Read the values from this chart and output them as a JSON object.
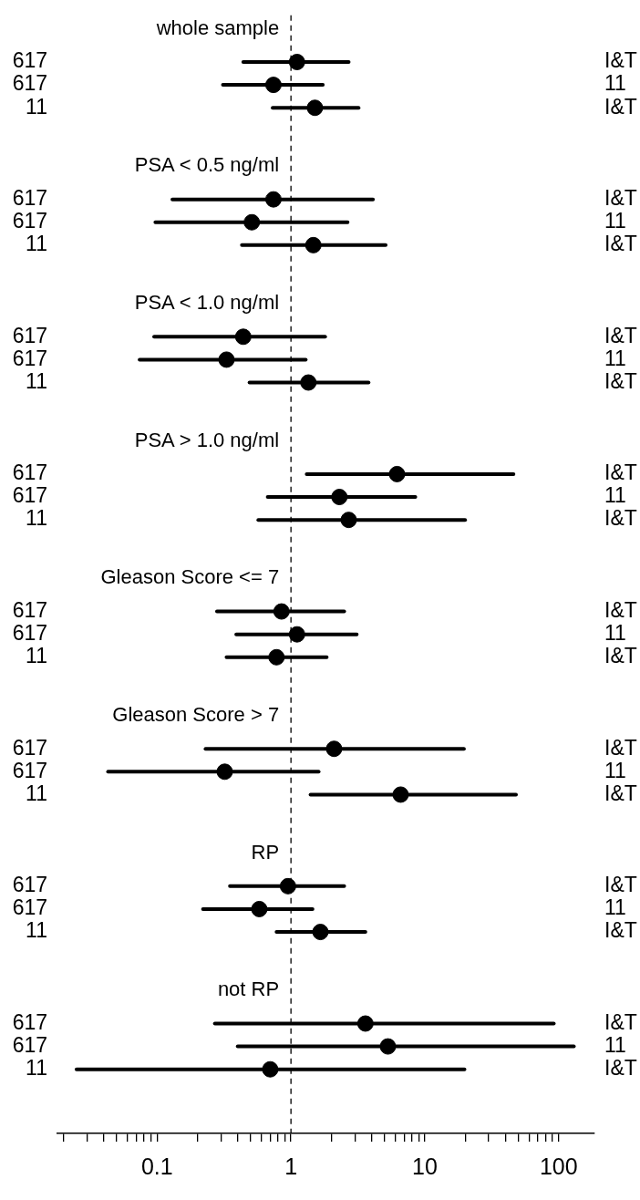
{
  "chart_data": {
    "type": "scatter",
    "orientation": "horizontal",
    "log": "x",
    "marker": "circle",
    "color": "#000000",
    "categories": [
      null,
      "617",
      "617",
      "11",
      null,
      null,
      null,
      "617",
      "617",
      "11",
      null,
      null,
      null,
      "617",
      "617",
      "11",
      null,
      null,
      null,
      "617",
      "617",
      "11",
      null,
      null,
      null,
      "617",
      "617",
      "11",
      null,
      null,
      null,
      "617",
      "617",
      "11",
      null,
      null,
      null,
      "617",
      "617",
      "11",
      null,
      null,
      null,
      "617",
      "617",
      "11",
      null,
      null
    ],
    "y2_categories": [
      null,
      "I&T",
      "11",
      "I&T",
      null,
      null,
      null,
      "I&T",
      "11",
      "I&T",
      null,
      null,
      null,
      "I&T",
      "11",
      "I&T",
      null,
      null,
      null,
      "I&T",
      "11",
      "I&T",
      null,
      null,
      null,
      "I&T",
      "11",
      "I&T",
      null,
      null,
      null,
      "I&T",
      "11",
      "I&T",
      null,
      null,
      null,
      "I&T",
      "11",
      "I&T",
      null,
      null,
      null,
      "I&T",
      "11",
      "I&T",
      null,
      null
    ],
    "values": [
      null,
      1.11,
      0.74,
      1.51,
      null,
      null,
      null,
      0.74,
      0.51,
      1.47,
      null,
      null,
      null,
      0.44,
      0.33,
      1.35,
      null,
      null,
      null,
      6.2,
      2.3,
      2.7,
      null,
      null,
      null,
      0.85,
      1.11,
      0.78,
      null,
      null,
      null,
      2.1,
      0.32,
      6.6,
      null,
      null,
      null,
      0.95,
      0.58,
      1.66,
      null,
      null,
      null,
      3.6,
      5.3,
      0.7,
      null,
      null
    ],
    "errors": [
      null,
      [
        0.44,
        2.7
      ],
      [
        0.31,
        1.73
      ],
      [
        0.73,
        3.2
      ],
      null,
      null,
      null,
      [
        0.13,
        4.1
      ],
      [
        0.097,
        2.65
      ],
      [
        0.43,
        5.1
      ],
      null,
      null,
      null,
      [
        0.095,
        1.8
      ],
      [
        0.074,
        1.29
      ],
      [
        0.49,
        3.8
      ],
      null,
      null,
      null,
      [
        1.31,
        46
      ],
      [
        0.67,
        8.5
      ],
      [
        0.57,
        20
      ],
      null,
      null,
      null,
      [
        0.28,
        2.5
      ],
      [
        0.39,
        3.1
      ],
      [
        0.33,
        1.85
      ],
      null,
      null,
      null,
      [
        0.23,
        19.6
      ],
      [
        0.043,
        1.61
      ],
      [
        1.4,
        48
      ],
      null,
      null,
      null,
      [
        0.35,
        2.5
      ],
      [
        0.22,
        1.45
      ],
      [
        0.78,
        3.6
      ],
      null,
      null,
      null,
      [
        0.27,
        92
      ],
      [
        0.4,
        130
      ],
      [
        0.025,
        19.8
      ],
      null,
      null
    ],
    "xlim": [
      0.018,
      185
    ],
    "xticks": [
      {
        "value": 0.02,
        "label": null
      },
      {
        "value": 0.03,
        "label": null
      },
      {
        "value": 0.04,
        "label": null
      },
      {
        "value": 0.05,
        "label": null
      },
      {
        "value": 0.06,
        "label": null
      },
      {
        "value": 0.07,
        "label": null
      },
      {
        "value": 0.08,
        "label": null
      },
      {
        "value": 0.09,
        "label": null
      },
      0.1,
      {
        "value": 0.2,
        "label": null
      },
      {
        "value": 0.3,
        "label": null
      },
      {
        "value": 0.4,
        "label": null
      },
      {
        "value": 0.5,
        "label": null
      },
      {
        "value": 0.6,
        "label": null
      },
      {
        "value": 0.7,
        "label": null
      },
      {
        "value": 0.8,
        "label": null
      },
      {
        "value": 0.9,
        "label": null
      },
      1,
      {
        "value": 2,
        "label": null
      },
      {
        "value": 3,
        "label": null
      },
      {
        "value": 4,
        "label": null
      },
      {
        "value": 5,
        "label": null
      },
      {
        "value": 6,
        "label": null
      },
      {
        "value": 7,
        "label": null
      },
      {
        "value": 8,
        "label": null
      },
      {
        "value": 9,
        "label": null
      },
      10,
      {
        "value": 20,
        "label": null
      },
      {
        "value": 30,
        "label": null
      },
      {
        "value": 40,
        "label": null
      },
      {
        "value": 50,
        "label": null
      },
      {
        "value": 60,
        "label": null
      },
      {
        "value": 70,
        "label": null
      },
      {
        "value": 80,
        "label": null
      },
      {
        "value": 90,
        "label": null
      },
      100
    ],
    "ref_lines": [
      {
        "axis": "x",
        "value": 1,
        "line_style": "dashed",
        "color": "#000000"
      }
    ],
    "annotations": [
      "whole sample",
      "PSA < 0.5 ng/ml",
      "PSA < 1.0 ng/ml",
      "PSA > 1.0 ng/ml",
      "Gleason Score <= 7",
      "Gleason Score > 7",
      "RP",
      "not RP"
    ]
  }
}
